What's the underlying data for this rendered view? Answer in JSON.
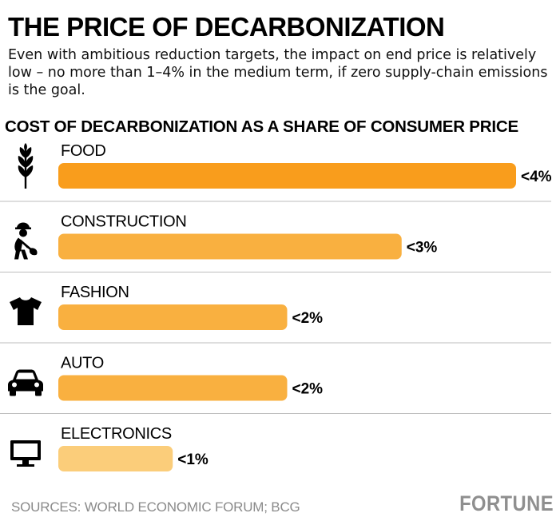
{
  "header": {
    "title": "THE PRICE OF DECARBONIZATION",
    "subtitle": "Even with ambitious reduction targets, the impact on end price is relatively low – no more than 1–4% in the medium term, if zero supply-chain emissions is the goal."
  },
  "chart_data": {
    "type": "bar",
    "orientation": "horizontal",
    "title": "COST OF DECARBONIZATION AS A SHARE OF CONSUMER PRICE",
    "categories": [
      "FOOD",
      "CONSTRUCTION",
      "FASHION",
      "AUTO",
      "ELECTRONICS"
    ],
    "values": [
      4,
      3,
      2,
      2,
      1
    ],
    "value_labels": [
      "<4%",
      "<3%",
      "<2%",
      "<2%",
      "<1%"
    ],
    "icons": [
      "wheat-icon",
      "construction-worker-icon",
      "tshirt-icon",
      "car-icon",
      "monitor-icon"
    ],
    "unit": "% of consumer price",
    "xlim": [
      0,
      4
    ],
    "grid": false,
    "colors": [
      "#f99d1c",
      "#f9b040",
      "#f9b040",
      "#f9b040",
      "#fbcd7a"
    ]
  },
  "footer": {
    "sources": "SOURCES: WORLD ECONOMIC FORUM; BCG",
    "logo": "FORTUNE"
  }
}
